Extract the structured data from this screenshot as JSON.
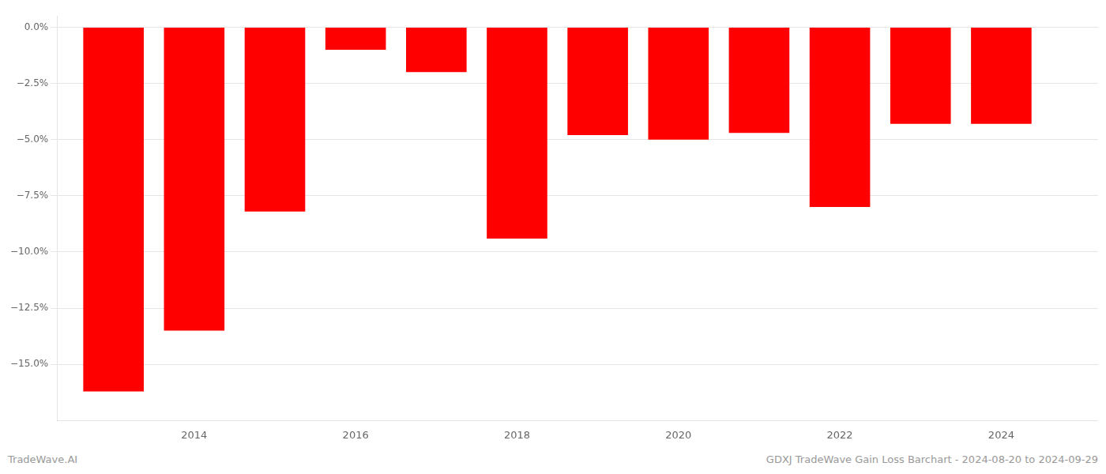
{
  "chart_data": {
    "type": "bar",
    "x": [
      2013,
      2014,
      2015,
      2016,
      2017,
      2018,
      2019,
      2020,
      2021,
      2022,
      2023,
      2024
    ],
    "values": [
      -16.2,
      -13.5,
      -8.2,
      -1.0,
      -2.0,
      -9.4,
      -4.8,
      -5.0,
      -4.7,
      -8.0,
      -4.3,
      -4.3
    ],
    "color": "#ff0000",
    "xlim": [
      2012.3,
      2025.2
    ],
    "xticks": [
      2014,
      2016,
      2018,
      2020,
      2022,
      2024
    ],
    "ylim": [
      -17.5,
      0.5
    ],
    "yticks": [
      {
        "value": 0.0,
        "label": "0.0%"
      },
      {
        "value": -2.5,
        "label": "−2.5%"
      },
      {
        "value": -5.0,
        "label": "−5.0%"
      },
      {
        "value": -7.5,
        "label": "−7.5%"
      },
      {
        "value": -10.0,
        "label": "−10.0%"
      },
      {
        "value": -12.5,
        "label": "−12.5%"
      },
      {
        "value": -15.0,
        "label": "−15.0%"
      }
    ],
    "grid": true,
    "annotations": [
      "TradeWave.AI",
      "GDXJ TradeWave Gain Loss Barchart - 2024-08-20 to 2024-09-29"
    ]
  }
}
